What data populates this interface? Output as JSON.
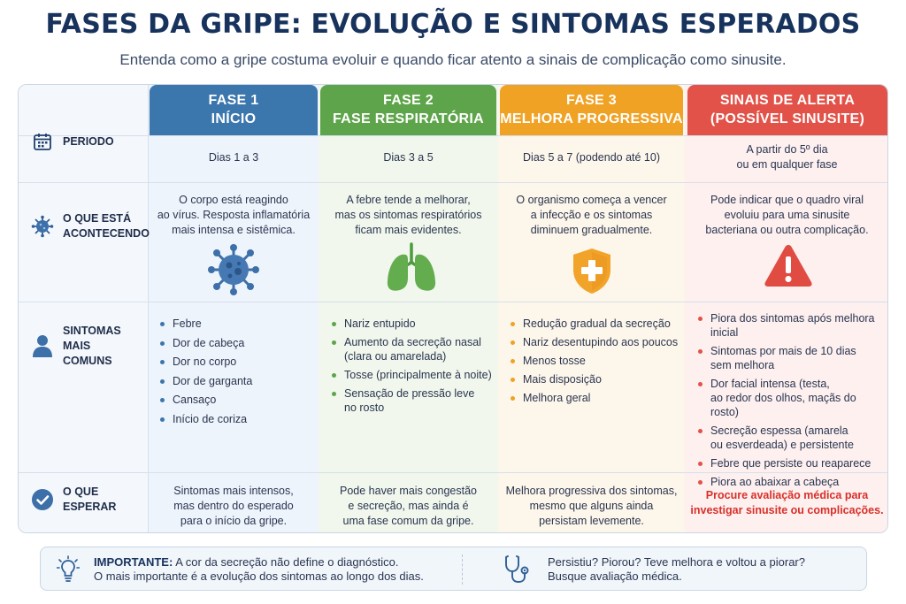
{
  "title": "FASES DA GRIPE: EVOLUÇÃO E SINTOMAS ESPERADOS",
  "subtitle": "Entenda como a gripe costuma evoluir e quando ficar atento a sinais de complicação como sinusite.",
  "row_labels": {
    "periodo": "PERIODO",
    "acontecendo_1": "O QUE ESTÁ",
    "acontecendo_2": "ACONTECENDO",
    "sintomas_1": "SINTOMAS MAIS",
    "sintomas_2": "COMUNS",
    "esperar": "O QUE ESPERAR"
  },
  "columns": [
    {
      "head_1": "FASE 1",
      "head_2": "INÍCIO",
      "period": [
        "Dias 1 a 3"
      ],
      "happening": [
        "O corpo está reagindo",
        "ao vírus. Resposta inflamatória",
        "mais intensa e sistêmica."
      ],
      "icon": "virus-icon",
      "symptoms": [
        "Febre",
        "Dor de cabeça",
        "Dor no corpo",
        "Dor de garganta",
        "Cansaço",
        "Início de coriza"
      ],
      "expect": [
        "Sintomas mais intensos,",
        "mas dentro do esperado",
        "para o início da gripe."
      ]
    },
    {
      "head_1": "FASE 2",
      "head_2": "FASE RESPIRATÓRIA",
      "period": [
        "Dias 3 a 5"
      ],
      "happening": [
        "A febre tende a melhorar,",
        "mas os sintomas respiratórios",
        "ficam mais evidentes."
      ],
      "icon": "lungs-icon",
      "symptoms": [
        [
          "Nariz entupido"
        ],
        [
          "Aumento da secreção nasal",
          "(clara ou amarelada)"
        ],
        [
          "Tosse (principalmente à noite)"
        ],
        [
          "Sensação de pressão leve",
          "no rosto"
        ]
      ],
      "expect": [
        "Pode haver mais congestão",
        "e secreção, mas ainda é",
        "uma fase comum da gripe."
      ]
    },
    {
      "head_1": "FASE 3",
      "head_2": "MELHORA PROGRESSIVA",
      "period": [
        "Dias 5 a 7 (podendo até 10)"
      ],
      "happening": [
        "O organismo começa a vencer",
        "a infecção e os sintomas",
        "diminuem gradualmente."
      ],
      "icon": "shield-plus-icon",
      "symptoms": [
        "Redução gradual da secreção",
        "Nariz desentupindo aos poucos",
        "Menos tosse",
        "Mais disposição",
        "Melhora geral"
      ],
      "expect": [
        "Melhora progressiva dos sintomas,",
        "mesmo que alguns ainda",
        "persistam levemente."
      ]
    },
    {
      "head_1": "SINAIS DE ALERTA",
      "head_2": "(POSSÍVEL SINUSITE)",
      "period": [
        "A partir do 5º dia",
        "ou em qualquer fase"
      ],
      "happening": [
        "Pode indicar que o quadro viral",
        "evoluiu para uma sinusite",
        "bacteriana ou outra complicação."
      ],
      "icon": "warning-icon",
      "symptoms": [
        [
          "Piora dos sintomas após melhora",
          "inicial"
        ],
        [
          "Sintomas por mais de 10 dias",
          "sem melhora"
        ],
        [
          "Dor facial intensa (testa,",
          "ao redor dos olhos, maçãs do rosto)"
        ],
        [
          "Secreção espessa (amarela",
          "ou esverdeada) e persistente"
        ],
        [
          "Febre que persiste ou reaparece"
        ],
        [
          "Piora ao abaixar a cabeça"
        ]
      ],
      "expect": [
        "Procure avaliação médica para",
        "investigar sinusite ou complicações."
      ]
    }
  ],
  "note": {
    "important_label": "IMPORTANTE:",
    "important_text_1": "A cor da secreção não define o diagnóstico.",
    "important_text_2": "O mais importante é a evolução dos sintomas ao longo dos dias.",
    "right_1": "Persistiu? Piorou?  Teve melhora e voltou a piorar?",
    "right_2": "Busque avaliação médica."
  },
  "colors": {
    "fase1": "#3b76ad",
    "fase2": "#5ea44a",
    "fase3": "#f0a224",
    "alerta": "#e25248",
    "navy": "#17325c"
  }
}
